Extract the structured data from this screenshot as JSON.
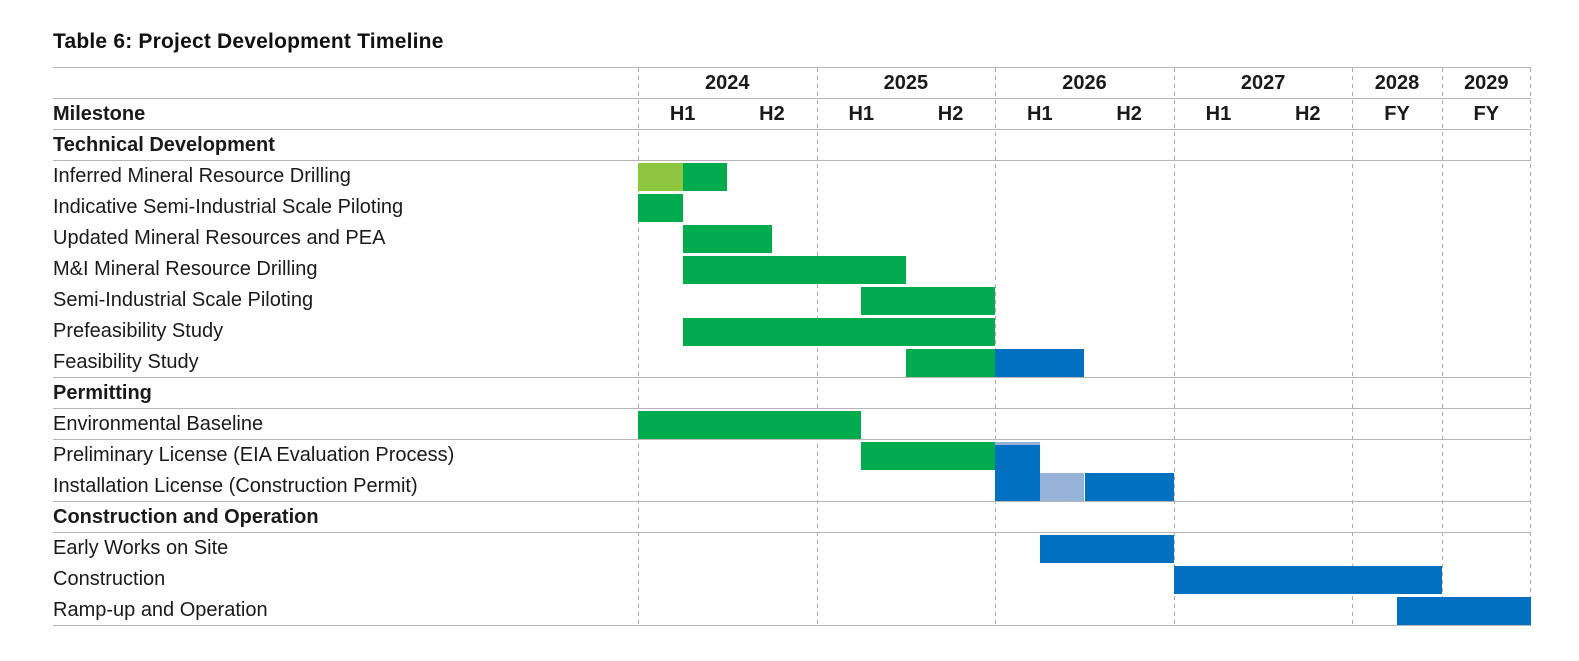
{
  "title": "Table 6: Project Development Timeline",
  "milestone_header": "Milestone",
  "colors": {
    "green": "#00AB4E",
    "light_green": "#8DC63F",
    "blue": "#0070C0",
    "light_blue": "#96B2D8",
    "rule_gray": "#b6b6b6",
    "grid_dash_gray": "#ababab",
    "text": "#1a1a1a"
  },
  "chart_data": {
    "type": "gantt",
    "title": "Table 6: Project Development Timeline",
    "time_axis": {
      "note": "timeline of 10 equal columns; 1 unit = 1 column (half-year for 2024-2027, full year for 2028-2029)",
      "years": [
        {
          "label": "2024",
          "cols": [
            "H1",
            "H2"
          ]
        },
        {
          "label": "2025",
          "cols": [
            "H1",
            "H2"
          ]
        },
        {
          "label": "2026",
          "cols": [
            "H1",
            "H2"
          ]
        },
        {
          "label": "2027",
          "cols": [
            "H1",
            "H2"
          ]
        },
        {
          "label": "2028",
          "cols": [
            "FY"
          ]
        },
        {
          "label": "2029",
          "cols": [
            "FY"
          ]
        }
      ],
      "grid": "dashed vertical lines at year boundaries"
    },
    "sections": [
      {
        "name": "Technical Development",
        "rows": [
          {
            "label": "Inferred Mineral Resource Drilling",
            "segments": [
              {
                "start": 0,
                "end": 0.5,
                "color": "light_green",
                "period": "2024 Q1"
              },
              {
                "start": 0.5,
                "end": 1,
                "color": "green",
                "period": "2024 Q2"
              }
            ]
          },
          {
            "label": "Indicative Semi-Industrial Scale Piloting",
            "segments": [
              {
                "start": 0,
                "end": 0.5,
                "color": "green",
                "period": "2024 Q1"
              }
            ]
          },
          {
            "label": "Updated Mineral Resources and PEA",
            "segments": [
              {
                "start": 0.5,
                "end": 1.5,
                "color": "green",
                "period": "2024 Q2 - 2024 Q3"
              }
            ]
          },
          {
            "label": "M&I Mineral Resource Drilling",
            "segments": [
              {
                "start": 0.5,
                "end": 3,
                "color": "green",
                "period": "2024 Q2 - 2025 Q2"
              }
            ]
          },
          {
            "label": "Semi-Industrial Scale Piloting",
            "segments": [
              {
                "start": 2.5,
                "end": 4,
                "color": "green",
                "period": "2025 Q2 - 2025 Q4"
              }
            ]
          },
          {
            "label": "Prefeasibility Study",
            "segments": [
              {
                "start": 0.5,
                "end": 4,
                "color": "green",
                "period": "2024 Q2 - 2025 Q4"
              }
            ]
          },
          {
            "label": "Feasibility Study",
            "underline": true,
            "segments": [
              {
                "start": 3,
                "end": 4,
                "color": "green",
                "period": "2025 H2"
              },
              {
                "start": 4,
                "end": 5,
                "color": "blue",
                "period": "2026 H1"
              }
            ]
          }
        ]
      },
      {
        "name": "Permitting",
        "rows": [
          {
            "label": "Environmental Baseline",
            "underline": true,
            "segments": [
              {
                "start": 0,
                "end": 2.5,
                "color": "green",
                "period": "2024 Q1 - 2025 Q1"
              }
            ]
          },
          {
            "label": "Preliminary License (EIA Evaluation Process)",
            "segments": [
              {
                "start": 2.5,
                "end": 4,
                "color": "green",
                "period": "2025 Q2 - 2025 Q4"
              },
              {
                "start": 4,
                "end": 4.5,
                "color": "blue",
                "period": "2026 Q1",
                "top_cap": "light_blue",
                "bleed_bottom": true
              }
            ]
          },
          {
            "label": "Installation License (Construction Permit)",
            "underline": true,
            "segments": [
              {
                "start": 4,
                "end": 4.5,
                "color": "blue",
                "period": "2026 Q1",
                "bleed_top": true
              },
              {
                "start": 4.5,
                "end": 5,
                "color": "light_blue",
                "period": "2026 Q2"
              },
              {
                "start": 5,
                "end": 6,
                "color": "blue",
                "period": "2026 H2"
              }
            ]
          }
        ]
      },
      {
        "name": "Construction and Operation",
        "rows": [
          {
            "label": "Early Works on Site",
            "segments": [
              {
                "start": 4.5,
                "end": 6,
                "color": "blue",
                "period": "2026 Q2 - 2026 Q4"
              }
            ]
          },
          {
            "label": "Construction",
            "segments": [
              {
                "start": 6,
                "end": 9,
                "color": "blue",
                "period": "2027 H1 - 2028 FY"
              }
            ]
          },
          {
            "label": "Ramp-up and Operation",
            "underline": true,
            "segments": [
              {
                "start": 8.5,
                "end": 10,
                "color": "blue",
                "period": "2028 H2 - 2029 FY"
              }
            ]
          }
        ]
      }
    ]
  }
}
